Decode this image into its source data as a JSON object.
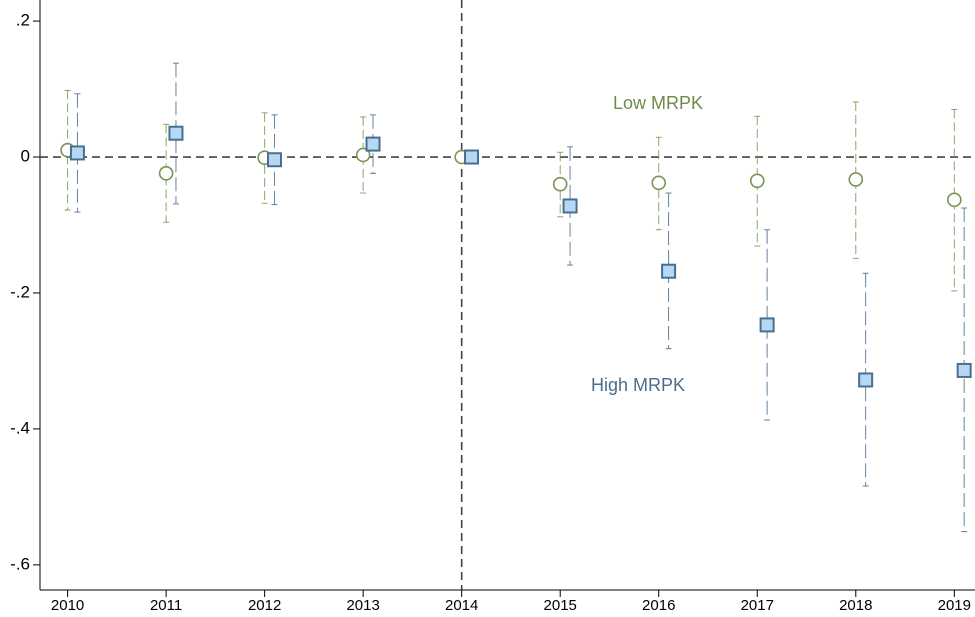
{
  "chart_data": {
    "type": "scatter",
    "xlim": [
      2009.72,
      2019.21
    ],
    "ylim": [
      -0.637,
      0.231
    ],
    "xticks": [
      2010,
      2011,
      2012,
      2013,
      2014,
      2015,
      2016,
      2017,
      2018,
      2019
    ],
    "yticks": [
      {
        "value": 0.2,
        "label": ".2"
      },
      0,
      {
        "value": -0.2,
        "label": "-.2"
      },
      {
        "value": -0.4,
        "label": "-.4"
      },
      {
        "value": -0.6,
        "label": "-.6"
      }
    ],
    "hline": 0,
    "vline": 2014,
    "annotations": [
      "Low MRPK",
      "High MRPK"
    ],
    "series": [
      {
        "name": "Low MRPK",
        "color": "#7a9455",
        "marker": "circle",
        "x": [
          2010,
          2011,
          2012,
          2013,
          2014,
          2015,
          2016,
          2017,
          2018,
          2019
        ],
        "values": [
          0.01,
          -0.024,
          -0.001,
          0.003,
          0,
          -0.04,
          -0.038,
          -0.035,
          -0.033,
          -0.063
        ],
        "upper": [
          0.098,
          0.048,
          0.065,
          0.059,
          null,
          0.007,
          0.029,
          0.06,
          0.081,
          0.07
        ],
        "lower": [
          -0.078,
          -0.096,
          -0.068,
          -0.053,
          null,
          -0.088,
          -0.107,
          -0.131,
          -0.149,
          -0.197
        ]
      },
      {
        "name": "High MRPK",
        "color": "#4a6e8e",
        "fill": "#b7d8f5",
        "marker": "square",
        "x": [
          2010.1,
          2011.1,
          2012.1,
          2013.1,
          2014.1,
          2015.1,
          2016.1,
          2017.1,
          2018.1,
          2019.1
        ],
        "values": [
          0.006,
          0.035,
          -0.004,
          0.019,
          0,
          -0.072,
          -0.168,
          -0.247,
          -0.328,
          -0.314
        ],
        "upper": [
          0.093,
          0.138,
          0.062,
          0.062,
          null,
          0.015,
          -0.053,
          -0.107,
          -0.171,
          -0.075
        ],
        "lower": [
          -0.081,
          -0.069,
          -0.07,
          -0.024,
          null,
          -0.159,
          -0.282,
          -0.387,
          -0.484,
          -0.551
        ]
      }
    ]
  }
}
